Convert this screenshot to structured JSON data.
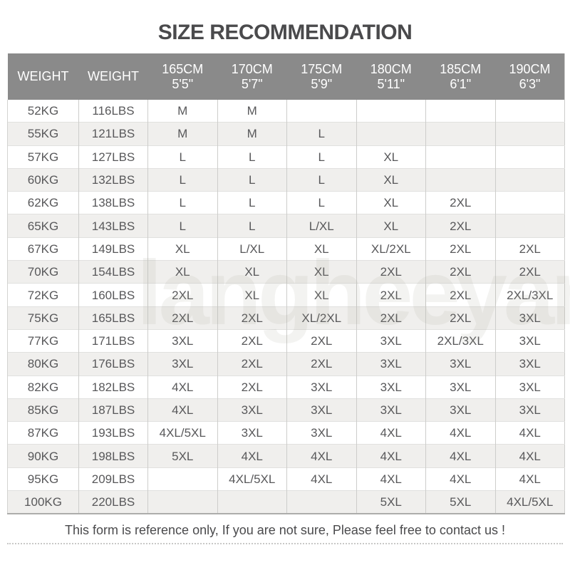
{
  "title": "SIZE RECOMMENDATION",
  "watermark": "langheeyan",
  "footer": {
    "note": "This form is reference only, If you are not sure, Please feel free to contact us !"
  },
  "colors": {
    "header_bg": "#8a8a8a",
    "header_text": "#ffffff",
    "row_alt": "#f0efed",
    "cell_text": "#58585a",
    "title_text": "#4a4a4c",
    "grid_line": "#cdcdcb",
    "table_bottom_border": "#adadab",
    "dotted_line": "#c9c9c7"
  },
  "chart_data": {
    "type": "table",
    "title": "SIZE RECOMMENDATION",
    "columns": [
      {
        "label": "WEIGHT",
        "sub": ""
      },
      {
        "label": "WEIGHT",
        "sub": ""
      },
      {
        "label": "165CM",
        "sub": "5'5\""
      },
      {
        "label": "170CM",
        "sub": "5'7\""
      },
      {
        "label": "175CM",
        "sub": "5'9\""
      },
      {
        "label": "180CM",
        "sub": "5'11\""
      },
      {
        "label": "185CM",
        "sub": "6'1\""
      },
      {
        "label": "190CM",
        "sub": "6'3\""
      }
    ],
    "rows": [
      [
        "52KG",
        "116LBS",
        "M",
        "M",
        "",
        "",
        "",
        ""
      ],
      [
        "55KG",
        "121LBS",
        "M",
        "M",
        "L",
        "",
        "",
        ""
      ],
      [
        "57KG",
        "127LBS",
        "L",
        "L",
        "L",
        "XL",
        "",
        ""
      ],
      [
        "60KG",
        "132LBS",
        "L",
        "L",
        "L",
        "XL",
        "",
        ""
      ],
      [
        "62KG",
        "138LBS",
        "L",
        "L",
        "L",
        "XL",
        "2XL",
        ""
      ],
      [
        "65KG",
        "143LBS",
        "L",
        "L",
        "L/XL",
        "XL",
        "2XL",
        ""
      ],
      [
        "67KG",
        "149LBS",
        "XL",
        "L/XL",
        "XL",
        "XL/2XL",
        "2XL",
        "2XL"
      ],
      [
        "70KG",
        "154LBS",
        "XL",
        "XL",
        "XL",
        "2XL",
        "2XL",
        "2XL"
      ],
      [
        "72KG",
        "160LBS",
        "2XL",
        "XL",
        "XL",
        "2XL",
        "2XL",
        "2XL/3XL"
      ],
      [
        "75KG",
        "165LBS",
        "2XL",
        "2XL",
        "XL/2XL",
        "2XL",
        "2XL",
        "3XL"
      ],
      [
        "77KG",
        "171LBS",
        "3XL",
        "2XL",
        "2XL",
        "3XL",
        "2XL/3XL",
        "3XL"
      ],
      [
        "80KG",
        "176LBS",
        "3XL",
        "2XL",
        "2XL",
        "3XL",
        "3XL",
        "3XL"
      ],
      [
        "82KG",
        "182LBS",
        "4XL",
        "2XL",
        "3XL",
        "3XL",
        "3XL",
        "3XL"
      ],
      [
        "85KG",
        "187LBS",
        "4XL",
        "3XL",
        "3XL",
        "3XL",
        "3XL",
        "3XL"
      ],
      [
        "87KG",
        "193LBS",
        "4XL/5XL",
        "3XL",
        "3XL",
        "4XL",
        "4XL",
        "4XL"
      ],
      [
        "90KG",
        "198LBS",
        "5XL",
        "4XL",
        "4XL",
        "4XL",
        "4XL",
        "4XL"
      ],
      [
        "95KG",
        "209LBS",
        "",
        "4XL/5XL",
        "4XL",
        "4XL",
        "4XL",
        "4XL"
      ],
      [
        "100KG",
        "220LBS",
        "",
        "",
        "",
        "5XL",
        "5XL",
        "4XL/5XL"
      ]
    ],
    "note": "This form is reference only, If you are not sure, Please feel free to contact us !"
  }
}
